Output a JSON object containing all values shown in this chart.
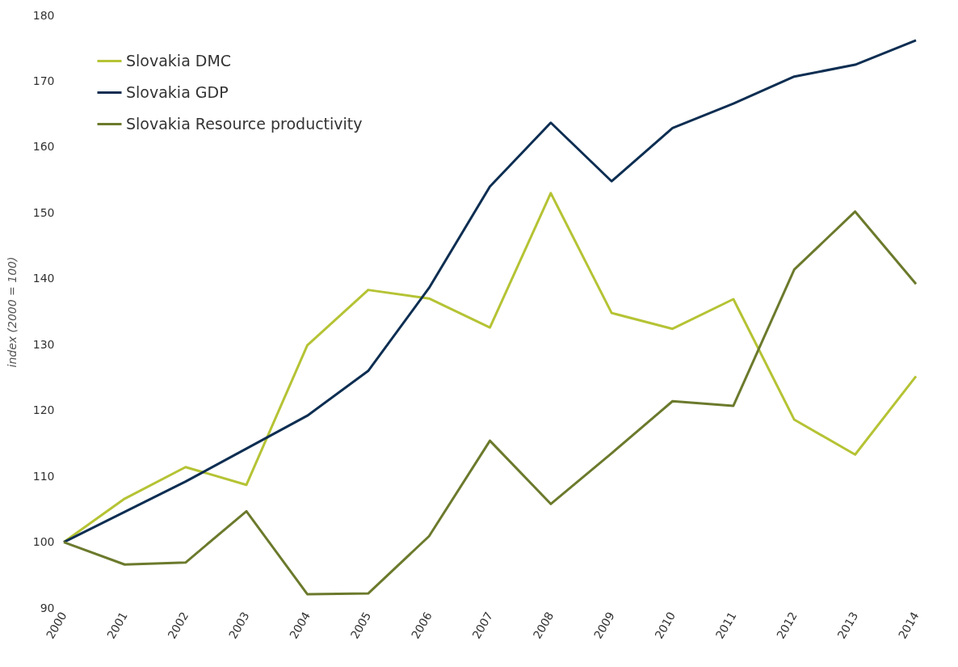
{
  "chart_data": {
    "type": "line",
    "ylabel": "index (2000 = 100)",
    "categories": [
      "2000",
      "2001",
      "2002",
      "2003",
      "2004",
      "2005",
      "2006",
      "2007",
      "2008",
      "2009",
      "2010",
      "2011",
      "2012",
      "2013",
      "2014"
    ],
    "series": [
      {
        "name": "Slovakia DMC",
        "color": "#b5c334",
        "values": [
          100,
          106.6,
          111.4,
          108.7,
          129.9,
          138.3,
          137.0,
          132.6,
          153.0,
          134.8,
          132.4,
          136.9,
          118.6,
          113.3,
          125.2
        ]
      },
      {
        "name": "Slovakia GDP",
        "color": "#0d2e52",
        "values": [
          100,
          104.6,
          109.2,
          114.2,
          119.2,
          126.0,
          138.6,
          154.0,
          163.7,
          154.8,
          162.9,
          166.6,
          170.7,
          172.5,
          176.2
        ]
      },
      {
        "name": "Slovakia Resource productivity",
        "color": "#6b7a2c",
        "values": [
          100,
          96.6,
          96.9,
          104.7,
          92.1,
          92.2,
          100.9,
          115.4,
          105.8,
          113.5,
          121.4,
          120.7,
          141.4,
          150.2,
          139.2
        ]
      }
    ],
    "ylim": [
      90,
      180
    ],
    "yticks": [
      90,
      100,
      110,
      120,
      130,
      140,
      150,
      160,
      170,
      180
    ],
    "grid": false,
    "legend": "top left",
    "marker": "none",
    "line_style": "solid"
  }
}
